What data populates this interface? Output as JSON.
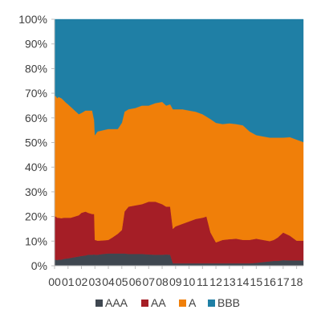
{
  "chart_data": {
    "type": "area",
    "stacked": true,
    "normalized": true,
    "x": [
      2000.0,
      2000.1,
      2000.2,
      2000.3,
      2000.5,
      2000.7,
      2000.8,
      2001.0,
      2001.2,
      2001.5,
      2001.8,
      2002.0,
      2002.3,
      2002.5,
      2002.8,
      2002.95,
      2003.0,
      2003.2,
      2003.6,
      2004.0,
      2004.3,
      2004.7,
      2005.0,
      2005.2,
      2005.5,
      2006.0,
      2006.5,
      2007.0,
      2007.5,
      2008.0,
      2008.3,
      2008.6,
      2008.8,
      2009.0,
      2009.5,
      2010.0,
      2010.5,
      2011.0,
      2011.3,
      2011.6,
      2012.0,
      2012.5,
      2013.0,
      2013.5,
      2014.0,
      2014.5,
      2015.0,
      2015.5,
      2016.0,
      2016.3,
      2016.6,
      2017.0,
      2017.5,
      2018.0,
      2018.5
    ],
    "xlim": [
      2000.0,
      2018.5
    ],
    "ylim": [
      0,
      100
    ],
    "xtick_values": [
      2000,
      2001,
      2002,
      2003,
      2004,
      2005,
      2006,
      2007,
      2008,
      2009,
      2010,
      2011,
      2012,
      2013,
      2014,
      2015,
      2016,
      2017,
      2018
    ],
    "xtick_labels": [
      "00",
      "01",
      "02",
      "03",
      "04",
      "05",
      "06",
      "07",
      "08",
      "09",
      "10",
      "11",
      "12",
      "13",
      "14",
      "15",
      "16",
      "17",
      "18"
    ],
    "ytick_values": [
      0,
      10,
      20,
      30,
      40,
      50,
      60,
      70,
      80,
      90,
      100
    ],
    "ytick_labels": [
      "0%",
      "10%",
      "20%",
      "30%",
      "40%",
      "50%",
      "60%",
      "70%",
      "80%",
      "90%",
      "100%"
    ],
    "series": [
      {
        "name": "AAA",
        "color": "#3f4750",
        "values": [
          2.5,
          2.5,
          2.3,
          2.5,
          2.5,
          2.8,
          2.9,
          3.0,
          3.2,
          3.5,
          3.8,
          4.0,
          4.2,
          4.5,
          4.5,
          4.6,
          4.5,
          4.5,
          4.8,
          5.0,
          5.0,
          5.0,
          5.0,
          5.0,
          4.8,
          4.8,
          4.8,
          4.6,
          4.5,
          4.5,
          4.6,
          4.5,
          1.0,
          1.0,
          1.0,
          1.0,
          1.0,
          1.0,
          1.0,
          1.0,
          1.0,
          1.0,
          1.0,
          1.0,
          1.0,
          1.0,
          1.2,
          1.5,
          1.8,
          2.0,
          2.0,
          2.3,
          2.2,
          2.2,
          2.2
        ]
      },
      {
        "name": "AA",
        "color": "#a51e26",
        "values": [
          17.5,
          17.5,
          17.2,
          17.0,
          16.8,
          16.7,
          16.6,
          16.5,
          16.3,
          16.5,
          16.7,
          17.5,
          17.8,
          17.0,
          16.5,
          16.4,
          6.0,
          5.7,
          5.5,
          5.5,
          6.5,
          8.0,
          9.5,
          17.0,
          19.2,
          19.7,
          20.2,
          21.4,
          21.5,
          20.5,
          19.4,
          19.5,
          14.0,
          15.0,
          16.0,
          17.0,
          18.0,
          18.5,
          19.0,
          12.5,
          8.5,
          9.5,
          9.8,
          10.0,
          9.5,
          9.5,
          9.8,
          9.0,
          8.2,
          8.5,
          9.5,
          11.2,
          10.0,
          8.0,
          8.0
        ]
      },
      {
        "name": "A",
        "color": "#f07f09",
        "values": [
          49.0,
          48.8,
          48.5,
          49.0,
          48.7,
          47.5,
          46.9,
          46.0,
          45.0,
          43.0,
          41.0,
          40.5,
          41.0,
          41.5,
          42.0,
          38.0,
          42.5,
          44.3,
          44.7,
          45.0,
          44.0,
          42.5,
          43.5,
          40.5,
          39.5,
          39.5,
          40.0,
          39.0,
          40.0,
          41.5,
          41.0,
          41.5,
          48.5,
          47.5,
          46.5,
          45.0,
          43.5,
          42.0,
          40.5,
          46.0,
          48.5,
          47.0,
          47.0,
          46.5,
          46.5,
          44.0,
          42.0,
          42.0,
          42.0,
          41.5,
          40.5,
          38.5,
          40.0,
          41.0,
          40.0
        ]
      },
      {
        "name": "BBB",
        "color": "#1f7fa5",
        "values": [
          31.0,
          31.2,
          32.0,
          31.5,
          32.0,
          33.0,
          33.6,
          34.5,
          35.5,
          37.0,
          38.5,
          38.0,
          37.0,
          37.0,
          37.0,
          41.0,
          47.0,
          45.5,
          45.0,
          44.5,
          44.5,
          44.5,
          42.0,
          37.5,
          36.5,
          36.0,
          35.0,
          35.0,
          34.0,
          33.5,
          35.0,
          34.5,
          36.5,
          36.5,
          36.5,
          37.0,
          37.5,
          38.5,
          39.5,
          40.5,
          42.0,
          42.5,
          42.2,
          42.5,
          43.0,
          45.5,
          47.0,
          47.5,
          48.0,
          48.0,
          48.0,
          48.0,
          47.8,
          48.8,
          49.8
        ]
      }
    ]
  }
}
